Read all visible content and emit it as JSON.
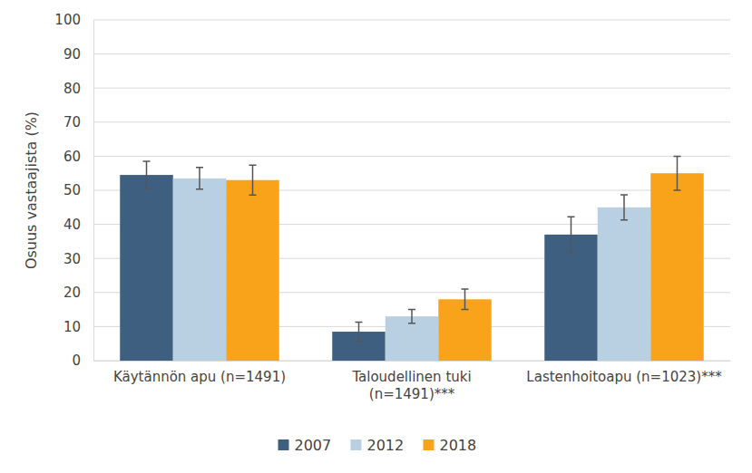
{
  "chart_data": {
    "type": "bar",
    "y_label": "Osuus vastaajista (%)",
    "categories": [
      "Käytännön apu (n=1491)",
      "Taloudellinen tuki\n(n=1491)***",
      "Lastenhoitoapu (n=1023)***"
    ],
    "series": [
      {
        "name": "2007",
        "color": "#3f5f80",
        "values": [
          54.5,
          8.5,
          37
        ],
        "errors": [
          4,
          2.8,
          5.2
        ]
      },
      {
        "name": "2012",
        "color": "#b9d0e2",
        "values": [
          53.5,
          13,
          45
        ],
        "errors": [
          3.2,
          2,
          3.7
        ]
      },
      {
        "name": "2018",
        "color": "#f9a31b",
        "values": [
          53,
          18,
          55
        ],
        "errors": [
          4.4,
          3,
          5
        ]
      }
    ],
    "ylim": [
      0,
      100
    ],
    "yticks": [
      0,
      10,
      20,
      30,
      40,
      50,
      60,
      70,
      80,
      90,
      100
    ],
    "grid": true,
    "legend": "bottom"
  }
}
